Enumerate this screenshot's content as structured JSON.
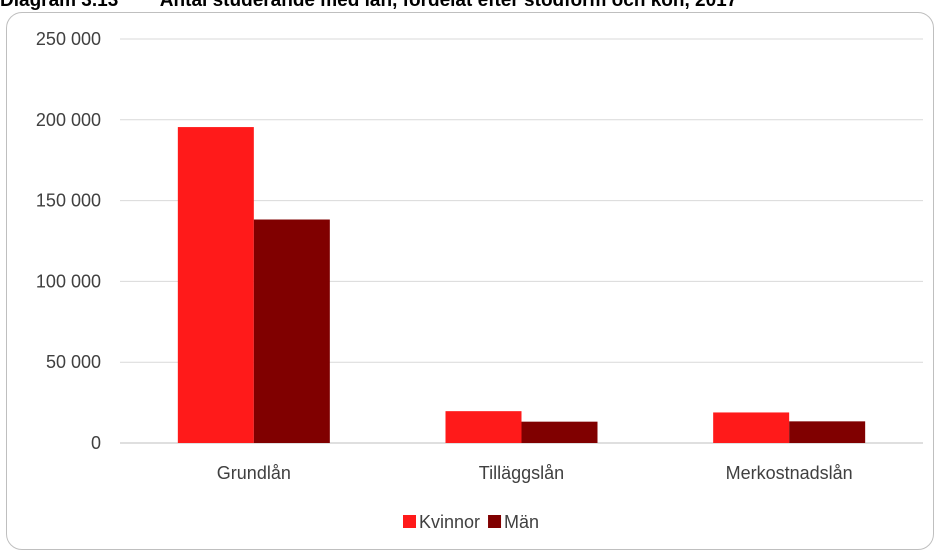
{
  "page": {
    "title": "Diagram 3.13        Antal studerande med lån, fördelat efter stödform och kön, 2017"
  },
  "chart_data": {
    "type": "bar",
    "title": "Antal studerande med lån, fördelat efter stödform och kön, 2017",
    "categories": [
      "Grundlån",
      "Tilläggslån",
      "Merkostnadslån"
    ],
    "series": [
      {
        "name": "Kvinnor",
        "values": [
          195500,
          19700,
          18900
        ],
        "color": "#ff1a1a"
      },
      {
        "name": "Män",
        "values": [
          138300,
          13200,
          13400
        ],
        "color": "#800000"
      }
    ],
    "ylim": [
      0,
      250000
    ],
    "yticks": [
      0,
      50000,
      100000,
      150000,
      200000,
      250000
    ],
    "ytick_labels": [
      "0",
      "50 000",
      "100 000",
      "150 000",
      "200 000",
      "250 000"
    ],
    "xlabel": "",
    "ylabel": "",
    "grid": true,
    "legend_position": "bottom"
  }
}
